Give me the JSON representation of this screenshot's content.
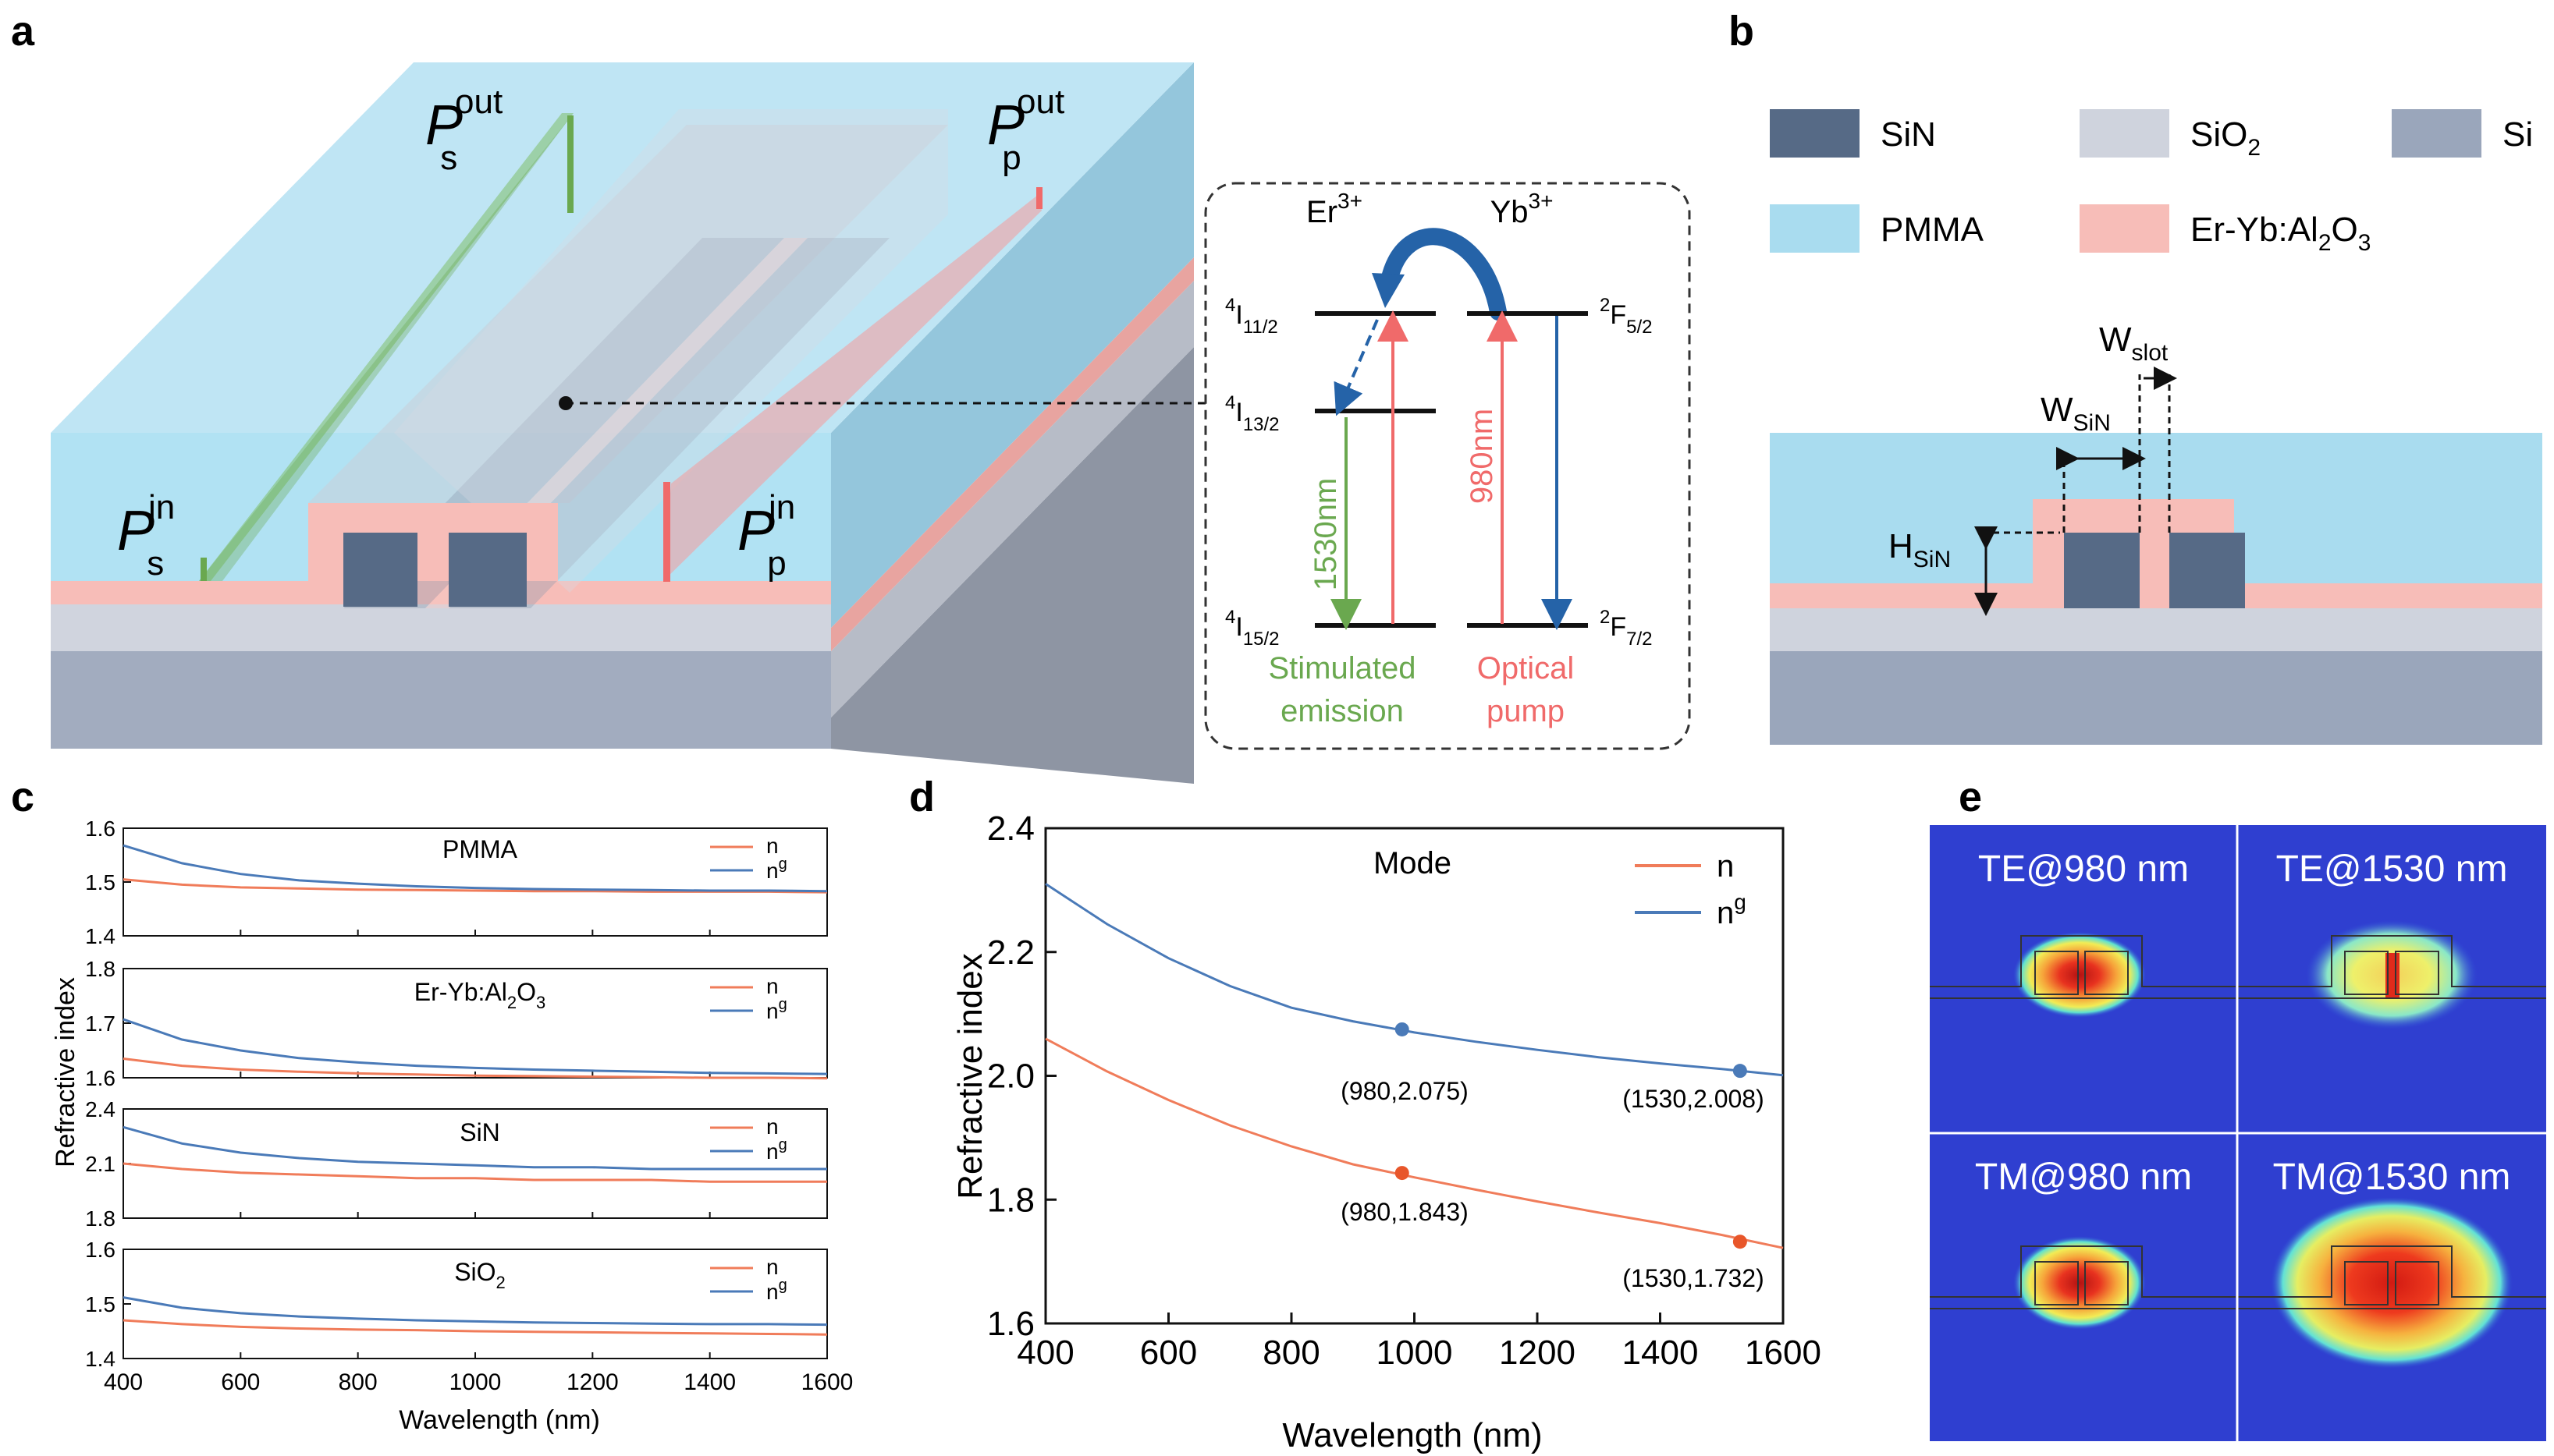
{
  "panels": {
    "a": "a",
    "b": "b",
    "c": "c",
    "d": "d",
    "e": "e"
  },
  "colors": {
    "n": "#f07c5a",
    "ng": "#4a7ab8",
    "pmma": "#a9dcef",
    "eryb": "#f7bdb8",
    "sin": "#566a86",
    "sio2": "#cfd3dd",
    "si": "#9aa6bb",
    "green": "#6aa84f",
    "red": "#f06a6a",
    "blue": "#2563a8"
  },
  "panel_a": {
    "ps_out": {
      "P": "P",
      "sub": "s",
      "sup": "out"
    },
    "pp_out": {
      "P": "P",
      "sub": "p",
      "sup": "out"
    },
    "ps_in": {
      "P": "P",
      "sub": "s",
      "sup": "in"
    },
    "pp_in": {
      "P": "P",
      "sub": "p",
      "sup": "in"
    },
    "er": {
      "base": "Er",
      "sup": "3+"
    },
    "yb": {
      "base": "Yb",
      "sup": "3+"
    },
    "levels": {
      "i112": {
        "pre": "4",
        "base": "I",
        "sub": "11/2"
      },
      "i132": {
        "pre": "4",
        "base": "I",
        "sub": "13/2"
      },
      "i152": {
        "pre": "4",
        "base": "I",
        "sub": "15/2"
      },
      "f52": {
        "pre": "2",
        "base": "F",
        "sub": "5/2"
      },
      "f72": {
        "pre": "2",
        "base": "F",
        "sub": "7/2"
      }
    },
    "wl_1530": "1530nm",
    "wl_980": "980nm",
    "stim_1": "Stimulated",
    "stim_2": "emission",
    "pump_1": "Optical",
    "pump_2": "pump"
  },
  "panel_b": {
    "legend": {
      "sin": "SiN",
      "sio2": {
        "base": "SiO",
        "sub": "2"
      },
      "si": "Si",
      "pmma": "PMMA",
      "eryb": {
        "base": "Er-Yb:Al",
        "sub1": "2",
        "mid": "O",
        "sub2": "3"
      }
    },
    "w_slot": {
      "base": "W",
      "sub": "slot"
    },
    "w_sin": {
      "base": "W",
      "sub": "SiN"
    },
    "h_sin": {
      "base": "H",
      "sub": "SiN"
    }
  },
  "panel_c": {
    "ylabel": "Refractive index",
    "xlabel": "Wavelength (nm)",
    "legend": {
      "n": "n",
      "ng_base": "n",
      "ng_sup": "g"
    },
    "xticks": [
      "400",
      "600",
      "800",
      "1000",
      "1200",
      "1400",
      "1600"
    ],
    "materials": [
      {
        "label": "PMMA",
        "yticks": [
          "1.6",
          "1.5",
          "1.4"
        ]
      },
      {
        "label_base": "Er-Yb:Al",
        "label_sub1": "2",
        "label_mid": "O",
        "label_sub2": "3",
        "yticks": [
          "1.8",
          "1.7",
          "1.6"
        ]
      },
      {
        "label": "SiN",
        "yticks": [
          "2.4",
          "2.1",
          "1.8"
        ]
      },
      {
        "label_base": "SiO",
        "label_sub": "2",
        "yticks": [
          "1.6",
          "1.5",
          "1.4"
        ]
      }
    ]
  },
  "panel_d": {
    "title": "Mode",
    "legend_n": "n",
    "legend_ng_base": "n",
    "legend_ng_sup": "g",
    "pt1": "(980,2.075)",
    "pt2": "(1530,2.008)",
    "pt3": "(980,1.843)",
    "pt4": "(1530,1.732)"
  },
  "panel_e": {
    "te980": "TE@980 nm",
    "te1530": "TE@1530 nm",
    "tm980": "TM@980 nm",
    "tm1530": "TM@1530 nm"
  },
  "chart_data": [
    {
      "type": "line",
      "title": "PMMA",
      "xlabel": "Wavelength (nm)",
      "ylabel": "Refractive index",
      "xlim": [
        400,
        1600
      ],
      "ylim": [
        1.4,
        1.6
      ],
      "x": [
        400,
        500,
        600,
        700,
        800,
        900,
        1000,
        1100,
        1200,
        1300,
        1400,
        1500,
        1600
      ],
      "series": [
        {
          "name": "n",
          "values": [
            1.505,
            1.495,
            1.49,
            1.488,
            1.486,
            1.485,
            1.484,
            1.483,
            1.483,
            1.482,
            1.482,
            1.482,
            1.481
          ]
        },
        {
          "name": "ng",
          "values": [
            1.568,
            1.535,
            1.515,
            1.503,
            1.497,
            1.492,
            1.489,
            1.487,
            1.486,
            1.485,
            1.484,
            1.484,
            1.483
          ]
        }
      ]
    },
    {
      "type": "line",
      "title": "Er-Yb:Al2O3",
      "xlabel": "Wavelength (nm)",
      "ylabel": "Refractive index",
      "xlim": [
        400,
        1600
      ],
      "ylim": [
        1.6,
        1.8
      ],
      "x": [
        400,
        500,
        600,
        700,
        800,
        900,
        1000,
        1100,
        1200,
        1300,
        1400,
        1500,
        1600
      ],
      "series": [
        {
          "name": "n",
          "values": [
            1.635,
            1.622,
            1.615,
            1.611,
            1.608,
            1.606,
            1.604,
            1.603,
            1.602,
            1.601,
            1.6,
            1.6,
            1.599
          ]
        },
        {
          "name": "ng",
          "values": [
            1.707,
            1.67,
            1.65,
            1.636,
            1.628,
            1.622,
            1.618,
            1.615,
            1.613,
            1.611,
            1.609,
            1.608,
            1.607
          ]
        }
      ]
    },
    {
      "type": "line",
      "title": "SiN",
      "xlabel": "Wavelength (nm)",
      "ylabel": "Refractive index",
      "xlim": [
        400,
        1600
      ],
      "ylim": [
        1.8,
        2.4
      ],
      "x": [
        400,
        500,
        600,
        700,
        800,
        900,
        1000,
        1100,
        1200,
        1300,
        1400,
        1500,
        1600
      ],
      "series": [
        {
          "name": "n",
          "values": [
            2.1,
            2.07,
            2.05,
            2.04,
            2.03,
            2.02,
            2.02,
            2.01,
            2.01,
            2.01,
            2.0,
            2.0,
            2.0
          ]
        },
        {
          "name": "ng",
          "values": [
            2.3,
            2.21,
            2.16,
            2.13,
            2.11,
            2.1,
            2.09,
            2.08,
            2.08,
            2.07,
            2.07,
            2.07,
            2.07
          ]
        }
      ]
    },
    {
      "type": "line",
      "title": "SiO2",
      "xlabel": "Wavelength (nm)",
      "ylabel": "Refractive index",
      "xlim": [
        400,
        1600
      ],
      "ylim": [
        1.4,
        1.6
      ],
      "x": [
        400,
        500,
        600,
        700,
        800,
        900,
        1000,
        1100,
        1200,
        1300,
        1400,
        1500,
        1600
      ],
      "series": [
        {
          "name": "n",
          "values": [
            1.47,
            1.463,
            1.458,
            1.455,
            1.453,
            1.452,
            1.45,
            1.449,
            1.448,
            1.447,
            1.446,
            1.445,
            1.444
          ]
        },
        {
          "name": "ng",
          "values": [
            1.512,
            1.493,
            1.483,
            1.477,
            1.473,
            1.47,
            1.468,
            1.466,
            1.465,
            1.464,
            1.463,
            1.463,
            1.462
          ]
        }
      ]
    },
    {
      "type": "line",
      "title": "Mode",
      "xlabel": "Wavelength (nm)",
      "ylabel": "Refractive index",
      "xlim": [
        400,
        1600
      ],
      "ylim": [
        1.6,
        2.4
      ],
      "xticks": [
        400,
        600,
        800,
        1000,
        1200,
        1400,
        1600
      ],
      "yticks": [
        1.6,
        1.8,
        2.0,
        2.2,
        2.4
      ],
      "x": [
        400,
        500,
        600,
        700,
        800,
        900,
        1000,
        1100,
        1200,
        1300,
        1400,
        1500,
        1600
      ],
      "series": [
        {
          "name": "n",
          "values": [
            2.06,
            2.007,
            1.961,
            1.92,
            1.886,
            1.857,
            1.836,
            1.816,
            1.797,
            1.779,
            1.762,
            1.743,
            1.722
          ]
        },
        {
          "name": "ng",
          "values": [
            2.31,
            2.245,
            2.19,
            2.145,
            2.11,
            2.088,
            2.07,
            2.055,
            2.042,
            2.03,
            2.02,
            2.011,
            2.001
          ]
        }
      ],
      "points": [
        {
          "x": 980,
          "y": 2.075,
          "label": "(980,2.075)"
        },
        {
          "x": 1530,
          "y": 2.008,
          "label": "(1530,2.008)"
        },
        {
          "x": 980,
          "y": 1.843,
          "label": "(980,1.843)"
        },
        {
          "x": 1530,
          "y": 1.732,
          "label": "(1530,1.732)"
        }
      ]
    }
  ]
}
